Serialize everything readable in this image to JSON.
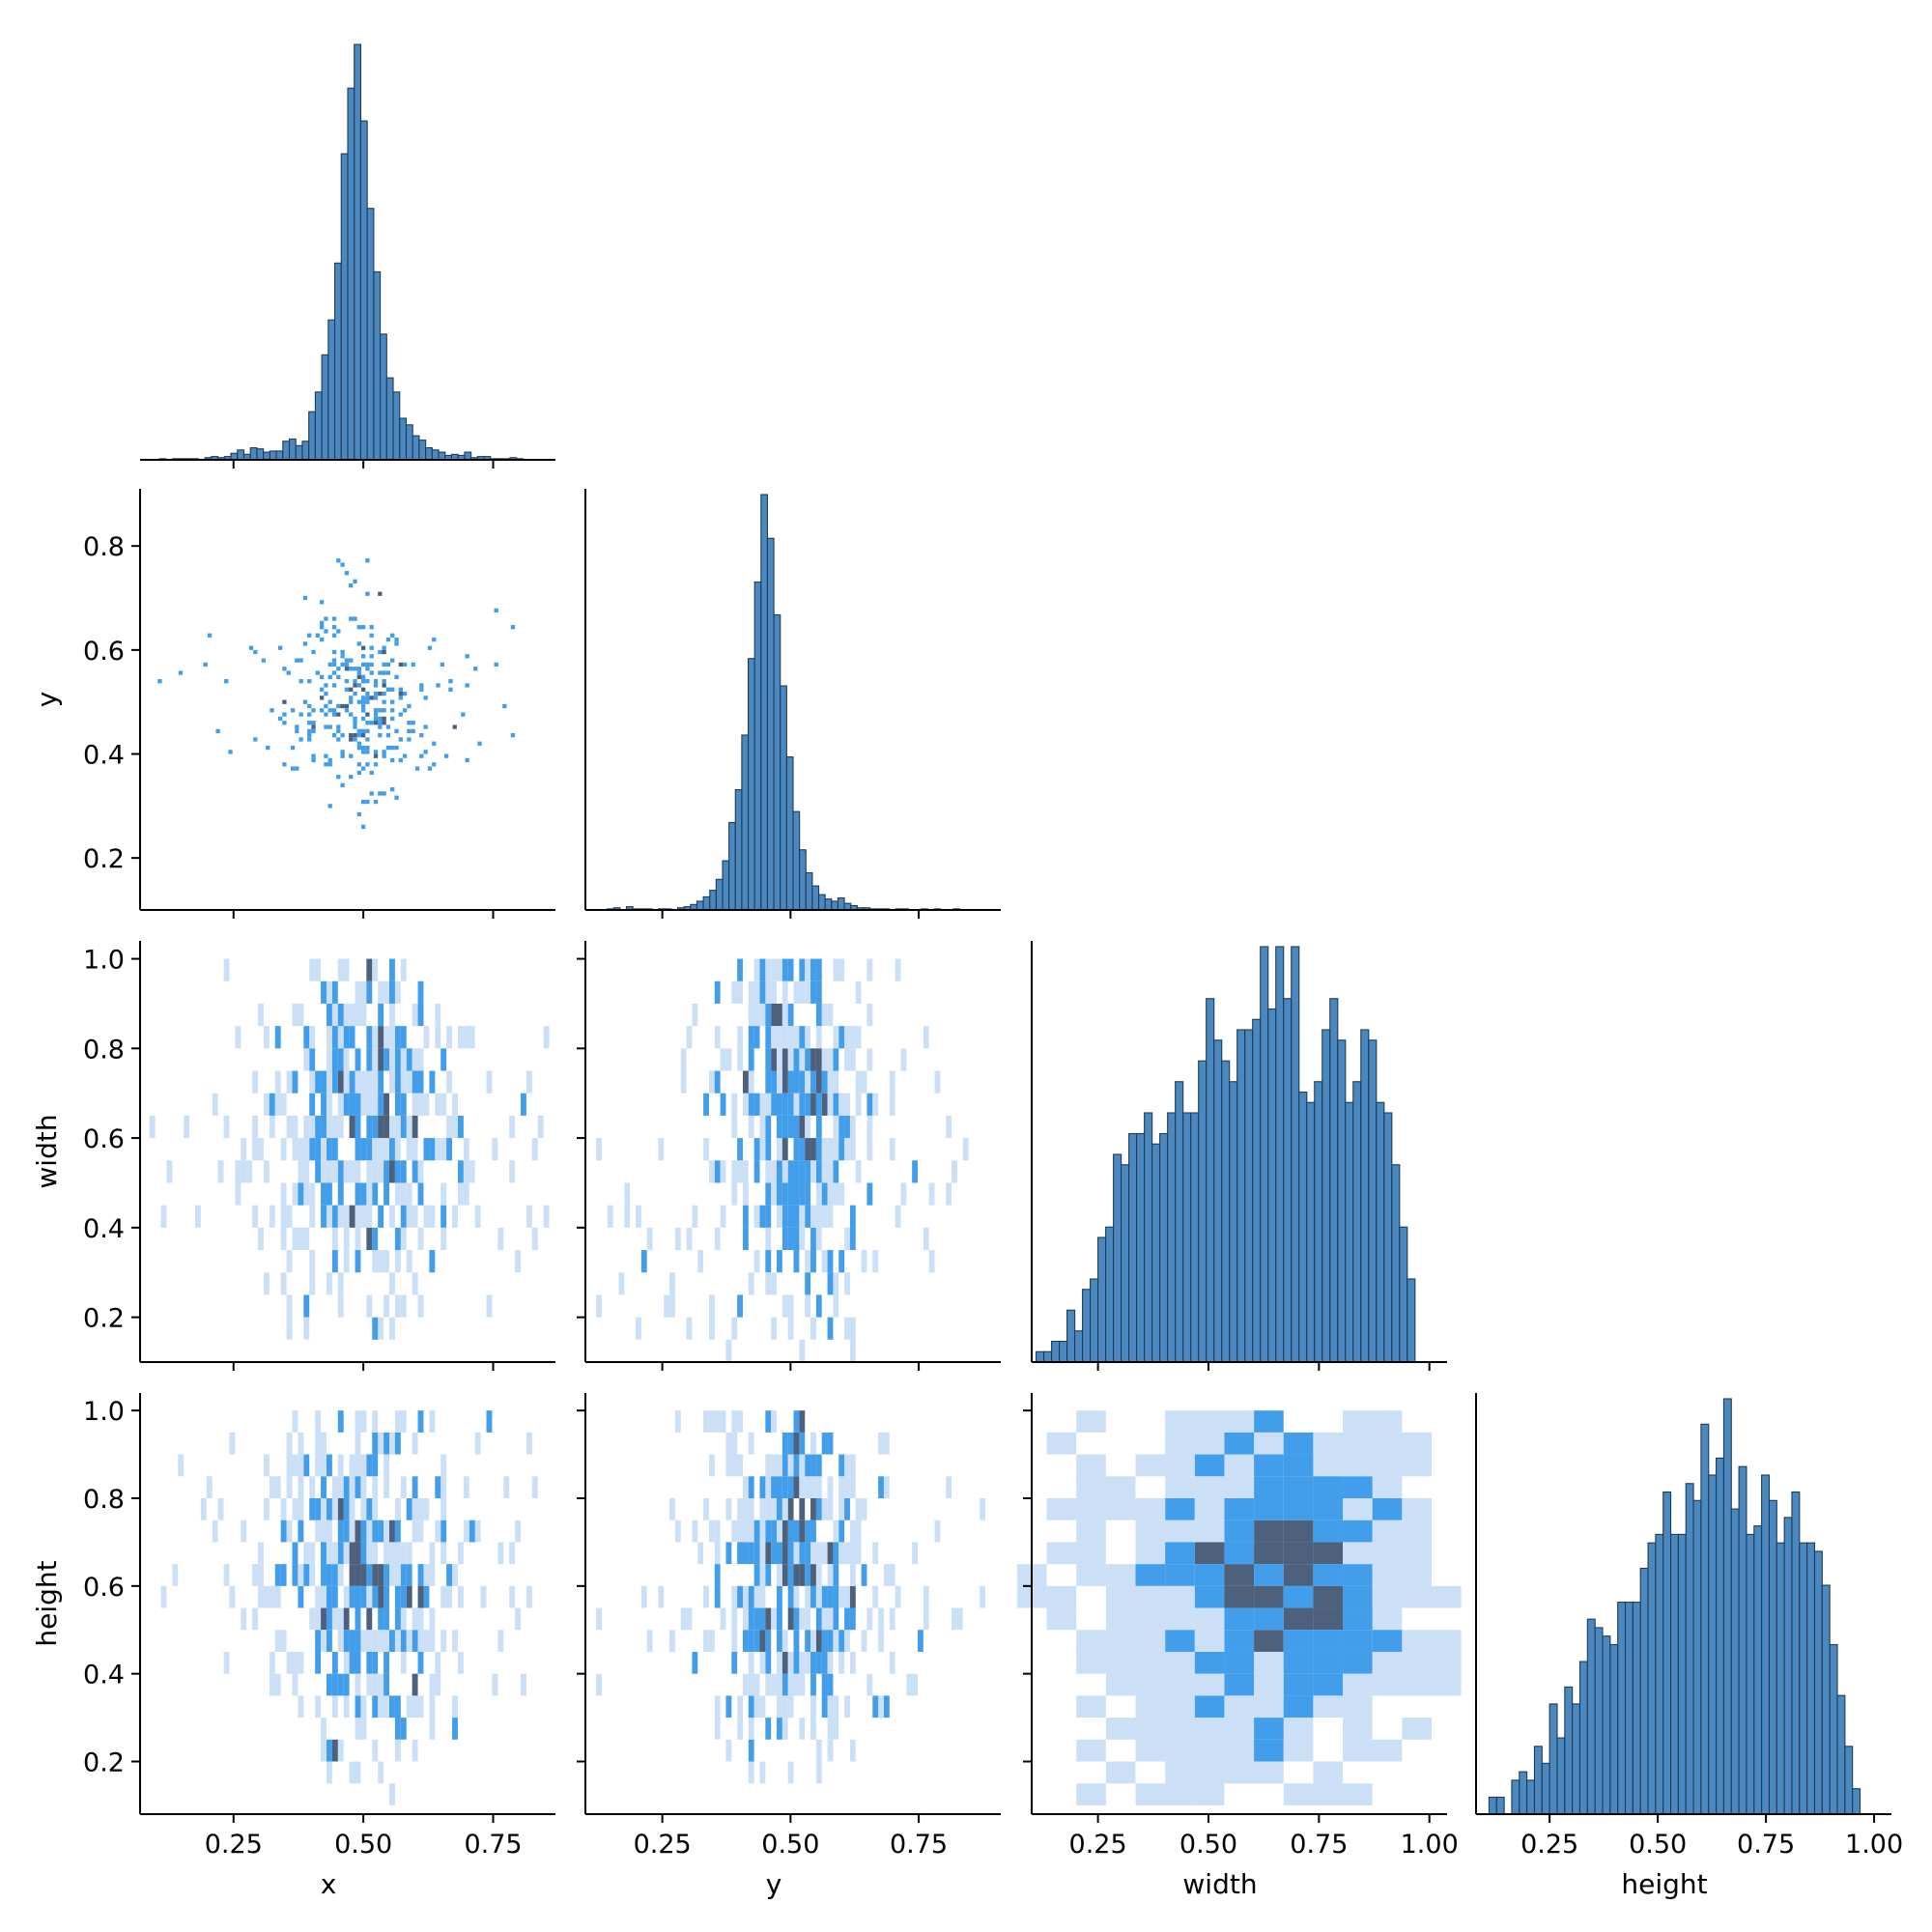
{
  "colors": {
    "bar_fill": "#4a88bf",
    "bar_edge": "#1f3b57",
    "heat_low": "#b9d5f3",
    "heat_mid": "#2e93e8",
    "heat_high": "#3a4f6e"
  },
  "chart_data": {
    "type": "heatmap",
    "layout": "pairplot-lower-corner",
    "variables": [
      "x",
      "y",
      "width",
      "height"
    ],
    "axis_labels": {
      "x": "x",
      "y": "y",
      "width": "width",
      "height": "height"
    },
    "limits": {
      "x": [
        0.07,
        0.87
      ],
      "y": [
        0.1,
        0.91
      ],
      "width": [
        0.1,
        1.04
      ],
      "height": [
        0.08,
        1.04
      ]
    },
    "ticks": {
      "x": {
        "values": [
          0.25,
          0.5,
          0.75
        ],
        "labels": [
          "0.25",
          "0.50",
          "0.75"
        ]
      },
      "y_bottom": {
        "values": [
          0.25,
          0.5,
          0.75
        ],
        "labels": [
          "0.25",
          "0.50",
          "0.75"
        ]
      },
      "y_left": {
        "values": [
          0.2,
          0.4,
          0.6,
          0.8
        ],
        "labels": [
          "0.2",
          "0.4",
          "0.6",
          "0.8"
        ]
      },
      "width_bottom": {
        "values": [
          0.25,
          0.5,
          0.75,
          1.0
        ],
        "labels": [
          "0.25",
          "0.50",
          "0.75",
          "1.00"
        ]
      },
      "width_left": {
        "values": [
          0.2,
          0.4,
          0.6,
          0.8,
          1.0
        ],
        "labels": [
          "0.2",
          "0.4",
          "0.6",
          "0.8",
          "1.0"
        ]
      },
      "height_bottom": {
        "values": [
          0.25,
          0.5,
          0.75,
          1.0
        ],
        "labels": [
          "0.25",
          "0.50",
          "0.75",
          "1.00"
        ]
      },
      "height_left": {
        "values": [
          0.2,
          0.4,
          0.6,
          0.8,
          1.0
        ],
        "labels": [
          "0.2",
          "0.4",
          "0.6",
          "0.8",
          "1.0"
        ]
      }
    },
    "histograms": [
      {
        "variable": "x",
        "bin_start": 0.095,
        "bin_width": 0.0125,
        "counts": [
          0,
          1,
          0,
          1,
          1,
          1,
          1,
          0,
          2,
          3,
          2,
          3,
          6,
          9,
          5,
          11,
          10,
          7,
          8,
          8,
          17,
          19,
          13,
          17,
          44,
          62,
          96,
          128,
          180,
          280,
          340,
          380,
          310,
          230,
          172,
          115,
          75,
          62,
          38,
          32,
          22,
          18,
          11,
          9,
          7,
          4,
          5,
          4,
          7,
          2,
          3,
          3,
          1,
          1,
          1,
          2,
          1
        ],
        "ymax": 380
      },
      {
        "variable": "y",
        "bin_start": 0.13,
        "bin_width": 0.0125,
        "counts": [
          0,
          1,
          2,
          0,
          3,
          1,
          1,
          1,
          0,
          1,
          1,
          0,
          2,
          3,
          5,
          8,
          12,
          18,
          28,
          45,
          80,
          110,
          160,
          230,
          300,
          380,
          340,
          270,
          205,
          140,
          90,
          55,
          34,
          22,
          14,
          10,
          8,
          11,
          6,
          4,
          2,
          2,
          1,
          1,
          1,
          0,
          1,
          1,
          0,
          0,
          1,
          0,
          1,
          0,
          0,
          1
        ],
        "ymax": 380
      },
      {
        "variable": "width",
        "bin_start": 0.11,
        "bin_width": 0.0175,
        "counts": [
          1,
          1,
          2,
          2,
          5,
          3,
          7,
          8,
          12,
          13,
          20,
          19,
          22,
          22,
          24,
          21,
          22,
          24,
          27,
          24,
          24,
          29,
          35,
          31,
          29,
          27,
          32,
          32,
          33,
          40,
          34,
          40,
          35,
          40,
          26,
          25,
          27,
          32,
          35,
          31,
          25,
          27,
          32,
          31,
          25,
          24,
          19,
          13,
          8
        ],
        "ymax": 40
      },
      {
        "variable": "height",
        "bin_start": 0.11,
        "bin_width": 0.0175,
        "counts": [
          2,
          2,
          0,
          4,
          5,
          4,
          8,
          6,
          13,
          9,
          15,
          13,
          18,
          23,
          22,
          21,
          20,
          25,
          25,
          25,
          29,
          32,
          33,
          38,
          33,
          33,
          39,
          37,
          46,
          40,
          42,
          49,
          36,
          41,
          33,
          34,
          40,
          37,
          32,
          35,
          38,
          32,
          32,
          31,
          27,
          20,
          14,
          8,
          3
        ],
        "ymax": 49
      }
    ],
    "heatmaps": [
      {
        "x": "x",
        "y": "y",
        "center": [
          0.5,
          0.51
        ],
        "spread": [
          0.09,
          0.09
        ],
        "points": 340,
        "cell": [
          0.008,
          0.008
        ],
        "seed": 11
      },
      {
        "x": "x",
        "y": "width",
        "center": [
          0.5,
          0.62
        ],
        "spread": [
          0.11,
          0.22
        ],
        "points": 520,
        "cell": [
          0.011,
          0.05
        ],
        "seed": 23
      },
      {
        "x": "y",
        "y": "width",
        "center": [
          0.51,
          0.62
        ],
        "spread": [
          0.1,
          0.22
        ],
        "points": 520,
        "cell": [
          0.011,
          0.05
        ],
        "seed": 37
      },
      {
        "x": "x",
        "y": "height",
        "center": [
          0.5,
          0.62
        ],
        "spread": [
          0.11,
          0.22
        ],
        "points": 520,
        "cell": [
          0.011,
          0.05
        ],
        "seed": 41
      },
      {
        "x": "y",
        "y": "height",
        "center": [
          0.51,
          0.62
        ],
        "spread": [
          0.1,
          0.22
        ],
        "points": 520,
        "cell": [
          0.011,
          0.05
        ],
        "seed": 53
      },
      {
        "x": "width",
        "y": "height",
        "center": [
          0.65,
          0.6
        ],
        "spread": [
          0.2,
          0.22
        ],
        "points": 900,
        "cell": [
          0.067,
          0.05
        ],
        "seed": 67
      }
    ]
  }
}
